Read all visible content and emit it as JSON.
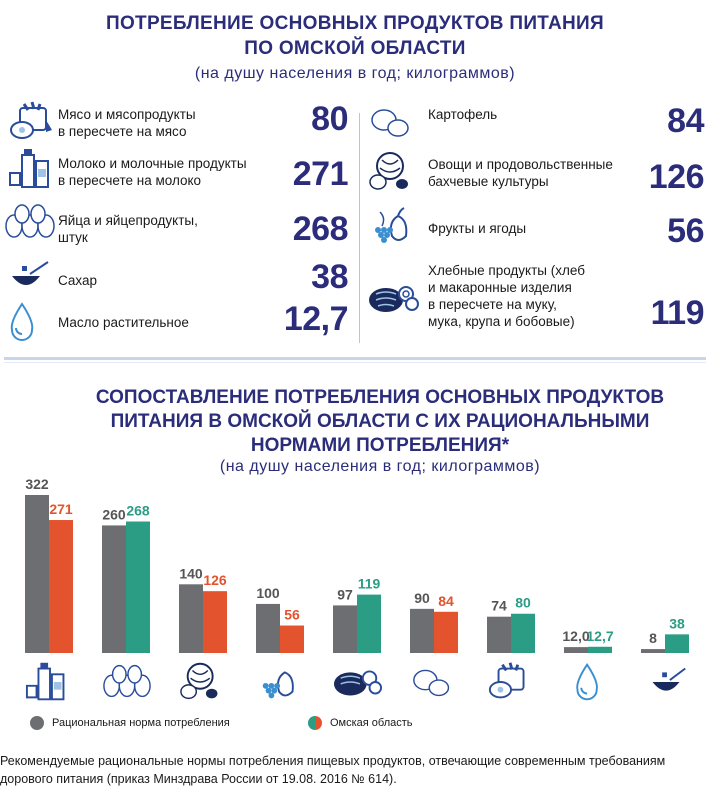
{
  "header": {
    "title_line1": "ПОТРЕБЛЕНИЕ ОСНОВНЫХ ПРОДУКТОВ ПИТАНИЯ",
    "title_line2": "ПО ОМСКОЙ ОБЛАСТИ",
    "subtitle": "(на душу населения в год; килограммов)"
  },
  "products_left": [
    {
      "label1": "Мясо и мясопродукты",
      "label2": "в пересчете на мясо",
      "value": "80",
      "icon": "meat-icon"
    },
    {
      "label1": "Молоко и молочные продукты",
      "label2": "в пересчете на молоко",
      "value": "271",
      "icon": "milk-icon"
    },
    {
      "label1": "Яйца и яйцепродукты,",
      "label2": "штук",
      "value": "268",
      "icon": "eggs-icon"
    },
    {
      "label1": "Сахар",
      "label2": "",
      "value": "38",
      "icon": "sugar-icon"
    },
    {
      "label1": "Масло растительное",
      "label2": "",
      "value": "12,7",
      "icon": "oil-drop-icon"
    }
  ],
  "products_right": [
    {
      "label1": "Картофель",
      "label2": "",
      "label3": "",
      "label4": "",
      "value": "84",
      "icon": "potato-icon"
    },
    {
      "label1": "Овощи и продовольственные",
      "label2": "бахчевые культуры",
      "label3": "",
      "label4": "",
      "value": "126",
      "icon": "vegetables-icon"
    },
    {
      "label1": "Фрукты и ягоды",
      "label2": "",
      "label3": "",
      "label4": "",
      "value": "56",
      "icon": "fruits-icon"
    },
    {
      "label1": "Хлебные продукты (хлеб",
      "label2": "и макаронные изделия",
      "label3": "в пересчете на муку,",
      "label4": "мука, крупа и бобовые)",
      "value": "119",
      "icon": "bread-icon"
    }
  ],
  "chart_title": {
    "line1": "СОПОСТАВЛЕНИЕ ПОТРЕБЛЕНИЯ ОСНОВНЫХ ПРОДУКТОВ",
    "line2": "ПИТАНИЯ В ОМСКОЙ ОБЛАСТИ С ИХ РАЦИОНАЛЬНЫМИ",
    "line3": "НОРМАМИ ПОТРЕБЛЕНИЯ*",
    "subtitle": "(на душу населения в год; килограммов)"
  },
  "chart_data": {
    "type": "bar",
    "categories": [
      "milk-icon",
      "eggs-icon",
      "vegetables-icon",
      "fruits-icon",
      "bread-icon",
      "potato-icon",
      "meat-icon",
      "oil-drop-icon",
      "sugar-icon"
    ],
    "series": [
      {
        "name": "Рациональная норма потребления",
        "values": [
          322,
          260,
          140,
          100,
          97,
          90,
          74,
          12.0,
          8
        ],
        "labels": [
          "322",
          "260",
          "140",
          "100",
          "97",
          "90",
          "74",
          "12,0",
          "8"
        ],
        "color": "#6d6e71"
      },
      {
        "name": "Омская область",
        "values": [
          271,
          268,
          126,
          56,
          119,
          84,
          80,
          12.7,
          38
        ],
        "labels": [
          "271",
          "268",
          "126",
          "56",
          "119",
          "84",
          "80",
          "12,7",
          "38"
        ],
        "colors": [
          "#e2532e",
          "#2a9d84",
          "#e2532e",
          "#e2532e",
          "#2a9d84",
          "#e2532e",
          "#2a9d84",
          "#2a9d84",
          "#2a9d84"
        ]
      }
    ],
    "ylim": [
      0,
      322
    ],
    "grid": false,
    "legend": "bottom"
  },
  "legend": {
    "norm_label": "Рациональная норма потребления",
    "region_label": "Омская область",
    "norm_color": "#6d6e71",
    "region_color_a": "#e2532e",
    "region_color_b": "#2a9d84"
  },
  "footnote": {
    "line1": "Рекомендуемые рациональные нормы потребления пищевых продуктов, отвечающие современным требованиям",
    "line2": "дорового питания (приказ Минздрава России от 19.08. 2016 № 614)."
  },
  "colors": {
    "title": "#2b2d7a",
    "accent_blue": "#2a4d9b",
    "accent_light": "#9ec3e6"
  }
}
